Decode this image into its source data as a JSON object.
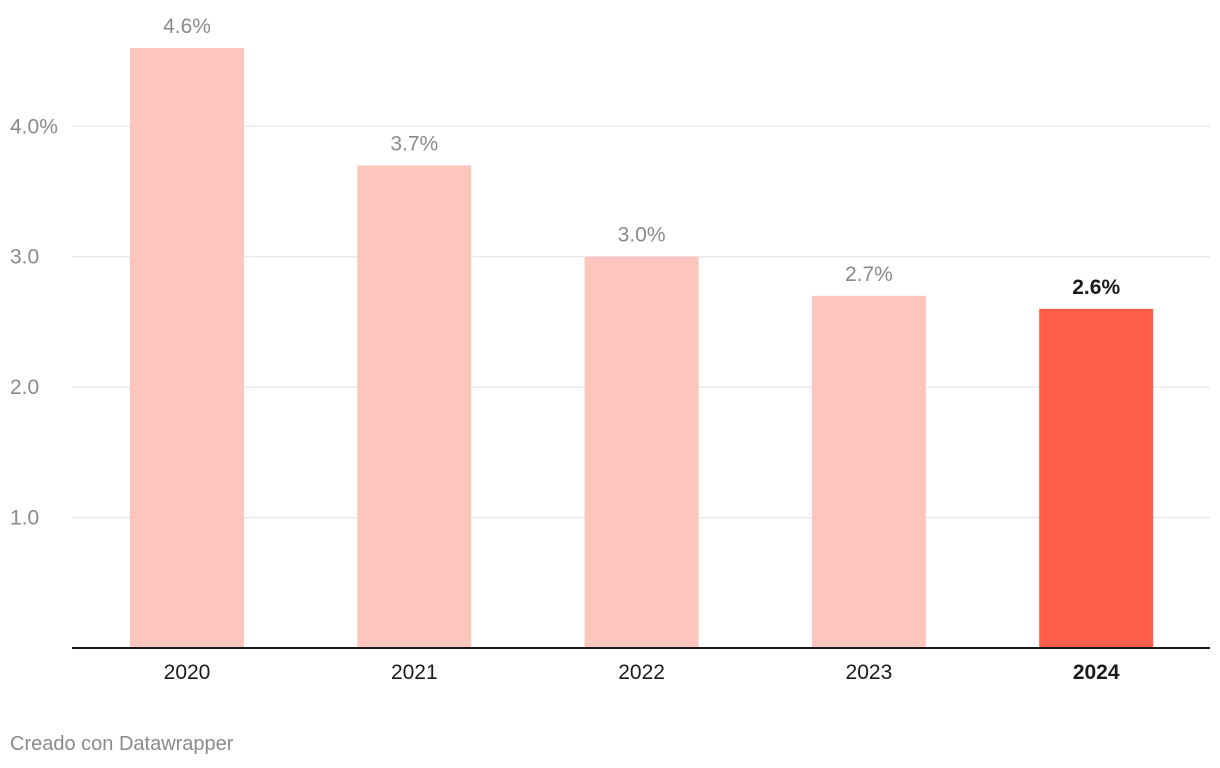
{
  "chart_data": {
    "type": "bar",
    "categories": [
      "2020",
      "2021",
      "2022",
      "2023",
      "2024"
    ],
    "values": [
      4.6,
      3.7,
      3.0,
      2.7,
      2.6
    ],
    "value_labels": [
      "4.6%",
      "3.7%",
      "3.0%",
      "2.7%",
      "2.6%"
    ],
    "highlight_index": 4,
    "y_ticks": [
      1.0,
      2.0,
      3.0,
      4.0
    ],
    "y_tick_labels": [
      "1.0",
      "2.0",
      "3.0",
      "4.0%"
    ],
    "ylim": [
      0,
      4.6
    ],
    "grid": true,
    "colors": {
      "bar": "#fec5bf",
      "highlight": "#ff5e4b",
      "label": "#8a8a8a",
      "highlight_label": "#1a1a1a",
      "axis": "#1a1a1a",
      "grid": "#e0e0e0"
    }
  },
  "footer": {
    "credit": "Creado con Datawrapper"
  }
}
